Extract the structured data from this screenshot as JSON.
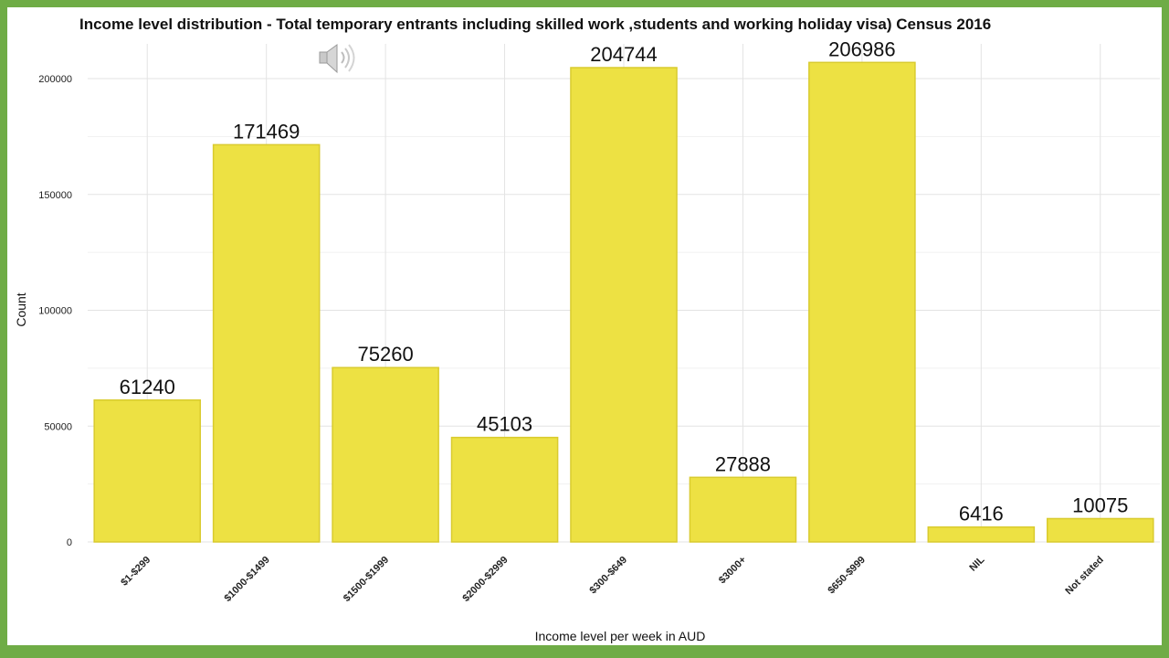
{
  "chart_data": {
    "type": "bar",
    "title": "Income level distribution - Total temporary entrants including skilled work ,students and working holiday visa) Census 2016",
    "xlabel": "Income level per week in AUD",
    "ylabel": "Count",
    "categories": [
      "$1-$299",
      "$1000-$1499",
      "$1500-$1999",
      "$2000-$2999",
      "$300-$649",
      "$3000+",
      "$650-$999",
      "NIL",
      "Not stated"
    ],
    "values": [
      61240,
      171469,
      75260,
      45103,
      204744,
      27888,
      206986,
      6416,
      10075
    ],
    "data_labels": [
      "61240",
      "171469",
      "75260",
      "45103",
      "204744",
      "27888",
      "206986",
      "6416",
      "10075"
    ],
    "y_ticks": [
      0,
      50000,
      100000,
      150000,
      200000
    ],
    "y_tick_labels": [
      "0",
      "50000",
      "100000",
      "150000",
      "200000"
    ],
    "ylim": [
      0,
      215000
    ],
    "grid": true,
    "bar_color": "#ede143",
    "bar_edge_color": "#d9cb2f",
    "speaker_icon": "speaker-icon"
  }
}
